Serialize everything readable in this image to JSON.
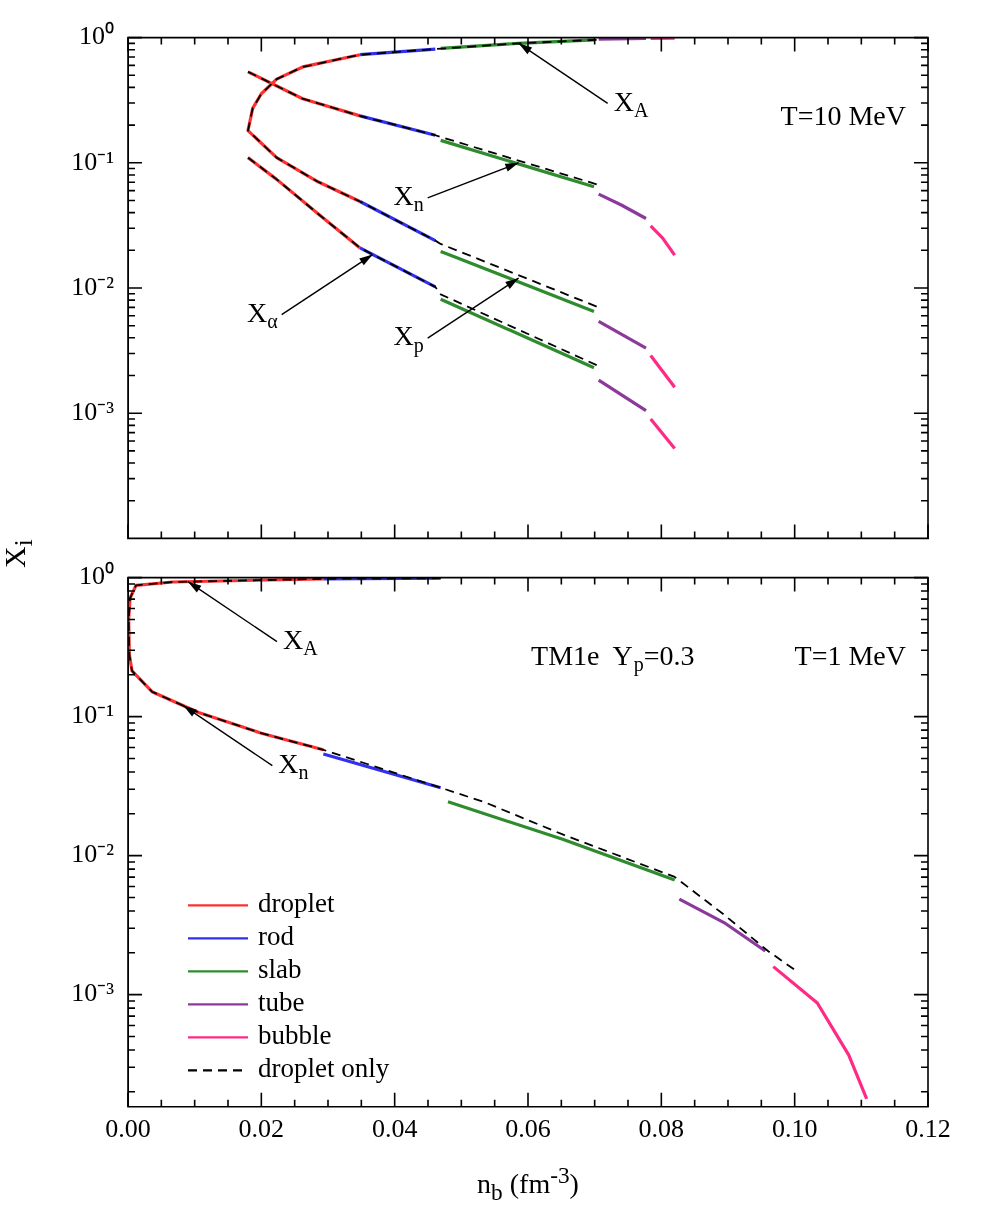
{
  "chart_data": [
    {
      "type": "line",
      "ylabel": "X$_{i}$",
      "log": "y",
      "tick_labels": "y",
      "legend": false,
      "xlim": [
        0,
        0.12
      ],
      "xticks": [
        {
          "value": 0,
          "label": null
        },
        {
          "value": 0.005,
          "label": null
        },
        {
          "value": 0.01,
          "label": null
        },
        {
          "value": 0.015,
          "label": null
        },
        {
          "value": 0.02,
          "label": null
        },
        {
          "value": 0.025,
          "label": null
        },
        {
          "value": 0.03,
          "label": null
        },
        {
          "value": 0.035,
          "label": null
        },
        {
          "value": 0.04,
          "label": null
        },
        {
          "value": 0.045,
          "label": null
        },
        {
          "value": 0.05,
          "label": null
        },
        {
          "value": 0.055,
          "label": null
        },
        {
          "value": 0.06,
          "label": null
        },
        {
          "value": 0.065,
          "label": null
        },
        {
          "value": 0.07,
          "label": null
        },
        {
          "value": 0.075,
          "label": null
        },
        {
          "value": 0.08,
          "label": null
        },
        {
          "value": 0.085,
          "label": null
        },
        {
          "value": 0.09,
          "label": null
        },
        {
          "value": 0.095,
          "label": null
        },
        {
          "value": 0.1,
          "label": null
        },
        {
          "value": 0.105,
          "label": null
        },
        {
          "value": 0.11,
          "label": null
        },
        {
          "value": 0.115,
          "label": null
        },
        {
          "value": 0.12,
          "label": null
        }
      ],
      "ylim": [
        0.0001,
        1
      ],
      "yticks": [
        {
          "value": 1,
          "label": "10⁰"
        },
        {
          "value": 0.1,
          "label": "10⁻¹"
        },
        {
          "value": 0.01,
          "label": "10⁻²"
        },
        {
          "value": 0.001,
          "label": "10⁻³"
        },
        {
          "value": 0.0002,
          "label": null
        },
        {
          "value": 0.0003,
          "label": null
        },
        {
          "value": 0.0004,
          "label": null
        },
        {
          "value": 0.0005,
          "label": null
        },
        {
          "value": 0.0006,
          "label": null
        },
        {
          "value": 0.0007,
          "label": null
        },
        {
          "value": 0.0008,
          "label": null
        },
        {
          "value": 0.0009,
          "label": null
        },
        {
          "value": 0.002,
          "label": null
        },
        {
          "value": 0.003,
          "label": null
        },
        {
          "value": 0.004,
          "label": null
        },
        {
          "value": 0.005,
          "label": null
        },
        {
          "value": 0.006,
          "label": null
        },
        {
          "value": 0.007,
          "label": null
        },
        {
          "value": 0.008,
          "label": null
        },
        {
          "value": 0.009,
          "label": null
        },
        {
          "value": 0.02,
          "label": null
        },
        {
          "value": 0.03,
          "label": null
        },
        {
          "value": 0.04,
          "label": null
        },
        {
          "value": 0.05,
          "label": null
        },
        {
          "value": 0.06,
          "label": null
        },
        {
          "value": 0.07,
          "label": null
        },
        {
          "value": 0.08,
          "label": null
        },
        {
          "value": 0.09,
          "label": null
        },
        {
          "value": 0.2,
          "label": null
        },
        {
          "value": 0.3,
          "label": null
        },
        {
          "value": 0.4,
          "label": null
        },
        {
          "value": 0.5,
          "label": null
        },
        {
          "value": 0.6,
          "label": null
        },
        {
          "value": 0.7,
          "label": null
        },
        {
          "value": 0.8,
          "label": null
        },
        {
          "value": 0.9,
          "label": null
        }
      ],
      "annotations": [
        "T=10 MeV",
        {
          "text": "X$_{A}$",
          "x": 0.0586,
          "y": 0.9
        },
        {
          "text": "X$_{n}$",
          "x": 0.0586,
          "y": 0.1
        },
        {
          "text": "X$_{p}$",
          "x": 0.0586,
          "y": 0.012
        },
        {
          "text": "X$_{α}$",
          "x": 0.0367,
          "y": 0.0185
        }
      ],
      "series": [
        {
          "color": "#ff3030",
          "x": [
            0.0348,
            0.0262,
            0.0223,
            0.02,
            0.0187,
            0.018,
            0.0223,
            0.0285,
            0.0348
          ],
          "values": [
            0.73,
            0.583,
            0.466,
            0.356,
            0.272,
            0.181,
            0.11,
            0.0705,
            0.0491
          ]
        },
        {
          "color": "#ff3030",
          "x": [
            0.018,
            0.0262,
            0.0348
          ],
          "values": [
            0.533,
            0.325,
            0.237
          ]
        },
        {
          "color": "#ff3030",
          "x": [
            0.018,
            0.0223,
            0.0285,
            0.0348
          ],
          "values": [
            0.11,
            0.0737,
            0.0392,
            0.0209
          ]
        },
        {
          "color": "#3030ee",
          "x": [
            0.0348,
            0.0461
          ],
          "values": [
            0.73,
            0.81
          ]
        },
        {
          "color": "#3030ee",
          "x": [
            0.0348,
            0.0461
          ],
          "values": [
            0.237,
            0.166
          ]
        },
        {
          "color": "#3030ee",
          "x": [
            0.0348,
            0.0461
          ],
          "values": [
            0.0491,
            0.0239
          ]
        },
        {
          "color": "#3030ee",
          "x": [
            0.0348,
            0.0461
          ],
          "values": [
            0.0209,
            0.0102
          ]
        },
        {
          "color": "#2e8b2e",
          "x": [
            0.0469,
            0.0586,
            0.0699
          ],
          "values": [
            0.82,
            0.9,
            0.96
          ]
        },
        {
          "color": "#2e8b2e",
          "x": [
            0.0469,
            0.0699
          ],
          "values": [
            0.151,
            0.0644
          ]
        },
        {
          "color": "#2e8b2e",
          "x": [
            0.0469,
            0.0699
          ],
          "values": [
            0.0196,
            0.00649
          ]
        },
        {
          "color": "#2e8b2e",
          "x": [
            0.0469,
            0.0699
          ],
          "values": [
            0.00813,
            0.00231
          ]
        },
        {
          "color": "#8b3a9b",
          "x": [
            0.0706,
            0.0777
          ],
          "values": [
            0.97,
            0.985
          ]
        },
        {
          "color": "#8b3a9b",
          "x": [
            0.0706,
            0.074,
            0.0777
          ],
          "values": [
            0.0562,
            0.046,
            0.0359
          ]
        },
        {
          "color": "#8b3a9b",
          "x": [
            0.0706,
            0.0777
          ],
          "values": [
            0.00542,
            0.00331
          ]
        },
        {
          "color": "#8b3a9b",
          "x": [
            0.0706,
            0.0777
          ],
          "values": [
            0.00184,
            0.00105
          ]
        },
        {
          "color": "#ff2a85",
          "x": [
            0.0784,
            0.082
          ],
          "values": [
            0.985,
            0.99
          ]
        },
        {
          "color": "#ff2a85",
          "x": [
            0.0784,
            0.0802,
            0.082
          ],
          "values": [
            0.0313,
            0.025,
            0.0183
          ]
        },
        {
          "color": "#ff2a85",
          "x": [
            0.0784,
            0.082
          ],
          "values": [
            0.00289,
            0.00161
          ]
        },
        {
          "color": "#ff2a85",
          "x": [
            0.0784,
            0.082
          ],
          "values": [
            0.000898,
            0.000523
          ]
        },
        {
          "color": "#000000",
          "line_style": "dashed",
          "x": [
            0.0703,
            0.0586,
            0.0461,
            0.0348,
            0.0262,
            0.0223,
            0.02,
            0.0187,
            0.018,
            0.0223,
            0.0285,
            0.0348,
            0.0461,
            0.0469,
            0.0703
          ],
          "values": [
            0.96,
            0.9,
            0.81,
            0.73,
            0.583,
            0.466,
            0.356,
            0.272,
            0.181,
            0.11,
            0.0705,
            0.0491,
            0.0239,
            0.0225,
            0.00711
          ]
        },
        {
          "color": "#000000",
          "line_style": "dashed",
          "x": [
            0.018,
            0.0262,
            0.0348,
            0.0461,
            0.0469,
            0.0703
          ],
          "values": [
            0.533,
            0.325,
            0.237,
            0.166,
            0.161,
            0.0673
          ]
        },
        {
          "color": "#000000",
          "line_style": "dashed",
          "x": [
            0.018,
            0.0223,
            0.0285,
            0.0348,
            0.0461,
            0.0469,
            0.0703
          ],
          "values": [
            0.11,
            0.0737,
            0.0392,
            0.0209,
            0.0102,
            0.0089,
            0.00242
          ]
        }
      ]
    },
    {
      "type": "line",
      "xlabel": "n$_{b}$ (fm$^{-3}$)",
      "log": "y",
      "legend": "bottom left",
      "xlim": [
        0,
        0.12
      ],
      "xticks": [
        {
          "value": 0,
          "label": "0.00"
        },
        {
          "value": 0.005,
          "label": null
        },
        {
          "value": 0.01,
          "label": null
        },
        {
          "value": 0.015,
          "label": null
        },
        {
          "value": 0.02,
          "label": "0.02"
        },
        {
          "value": 0.025,
          "label": null
        },
        {
          "value": 0.03,
          "label": null
        },
        {
          "value": 0.035,
          "label": null
        },
        {
          "value": 0.04,
          "label": "0.04"
        },
        {
          "value": 0.045,
          "label": null
        },
        {
          "value": 0.05,
          "label": null
        },
        {
          "value": 0.055,
          "label": null
        },
        {
          "value": 0.06,
          "label": "0.06"
        },
        {
          "value": 0.065,
          "label": null
        },
        {
          "value": 0.07,
          "label": null
        },
        {
          "value": 0.075,
          "label": null
        },
        {
          "value": 0.08,
          "label": "0.08"
        },
        {
          "value": 0.085,
          "label": null
        },
        {
          "value": 0.09,
          "label": null
        },
        {
          "value": 0.095,
          "label": null
        },
        {
          "value": 0.1,
          "label": "0.10"
        },
        {
          "value": 0.105,
          "label": null
        },
        {
          "value": 0.11,
          "label": null
        },
        {
          "value": 0.115,
          "label": null
        },
        {
          "value": 0.12,
          "label": "0.12"
        }
      ],
      "ylim": [
        0.000156,
        1
      ],
      "yticks": [
        {
          "value": 1,
          "label": "10⁰"
        },
        {
          "value": 0.1,
          "label": "10⁻¹"
        },
        {
          "value": 0.01,
          "label": "10⁻²"
        },
        {
          "value": 0.001,
          "label": "10⁻³"
        },
        {
          "value": 0.0002,
          "label": null
        },
        {
          "value": 0.0003,
          "label": null
        },
        {
          "value": 0.0004,
          "label": null
        },
        {
          "value": 0.0005,
          "label": null
        },
        {
          "value": 0.0006,
          "label": null
        },
        {
          "value": 0.0007,
          "label": null
        },
        {
          "value": 0.0008,
          "label": null
        },
        {
          "value": 0.0009,
          "label": null
        },
        {
          "value": 0.002,
          "label": null
        },
        {
          "value": 0.003,
          "label": null
        },
        {
          "value": 0.004,
          "label": null
        },
        {
          "value": 0.005,
          "label": null
        },
        {
          "value": 0.006,
          "label": null
        },
        {
          "value": 0.007,
          "label": null
        },
        {
          "value": 0.008,
          "label": null
        },
        {
          "value": 0.009,
          "label": null
        },
        {
          "value": 0.02,
          "label": null
        },
        {
          "value": 0.03,
          "label": null
        },
        {
          "value": 0.04,
          "label": null
        },
        {
          "value": 0.05,
          "label": null
        },
        {
          "value": 0.06,
          "label": null
        },
        {
          "value": 0.07,
          "label": null
        },
        {
          "value": 0.08,
          "label": null
        },
        {
          "value": 0.09,
          "label": null
        },
        {
          "value": 0.2,
          "label": null
        },
        {
          "value": 0.3,
          "label": null
        },
        {
          "value": 0.4,
          "label": null
        },
        {
          "value": 0.5,
          "label": null
        },
        {
          "value": 0.6,
          "label": null
        },
        {
          "value": 0.7,
          "label": null
        },
        {
          "value": 0.8,
          "label": null
        },
        {
          "value": 0.9,
          "label": null
        }
      ],
      "annotations": [
        "TM1e  Y$_{p}$=0.3",
        "T=1 MeV",
        {
          "text": "X$_{A}$",
          "x": 0.009,
          "y": 0.935
        },
        {
          "text": "X$_{n}$",
          "x": 0.0083,
          "y": 0.12
        }
      ],
      "series": [
        {
          "name": "droplet",
          "color": "#ff3030",
          "x": [
            0.0293,
            0.0067,
            0.0012,
            0.0003,
            0.0001,
            0.0002,
            0.0006,
            0.0036,
            0.0106,
            0.02,
            0.0293
          ],
          "values": [
            0.98,
            0.93,
            0.88,
            0.71,
            0.5,
            0.28,
            0.213,
            0.151,
            0.107,
            0.076,
            0.0577
          ]
        },
        {
          "name": "rod",
          "color": "#3030ee",
          "x": [
            0.0293,
            0.0469
          ],
          "values": [
            0.0539,
            0.0308
          ]
        },
        {
          "name": "slab",
          "color": "#2e8b2e",
          "x": [
            0.048,
            0.0652,
            0.082
          ],
          "values": [
            0.0244,
            0.0131,
            0.00668
          ]
        },
        {
          "name": "tube",
          "color": "#8b3a9b",
          "x": [
            0.0827,
            0.0894,
            0.0956
          ],
          "values": [
            0.00486,
            0.0033,
            0.00206
          ]
        },
        {
          "name": "bubble",
          "color": "#ff2a85",
          "x": [
            0.0968,
            0.1034,
            0.1081,
            0.1108
          ],
          "values": [
            0.00159,
            0.00087,
            0.000369,
            0.000178
          ]
        },
        {
          "color": "#3030ee",
          "x": [
            0.0293,
            0.0469
          ],
          "values": [
            0.98,
            0.99
          ]
        },
        {
          "name": "droplet only",
          "color": "#000000",
          "line_style": "dashed",
          "x": [
            0.0469,
            0.0293,
            0.0067,
            0.0012,
            0.0003,
            0.0001,
            0.0002,
            0.0006,
            0.0036,
            0.0106,
            0.02,
            0.0293,
            0.0469,
            0.0535,
            0.0652,
            0.082,
            0.0894,
            0.096,
            0.0999
          ],
          "values": [
            0.99,
            0.98,
            0.93,
            0.88,
            0.71,
            0.5,
            0.28,
            0.213,
            0.151,
            0.107,
            0.076,
            0.0577,
            0.0308,
            0.0242,
            0.0142,
            0.00703,
            0.00376,
            0.00206,
            0.00152
          ]
        }
      ]
    }
  ]
}
